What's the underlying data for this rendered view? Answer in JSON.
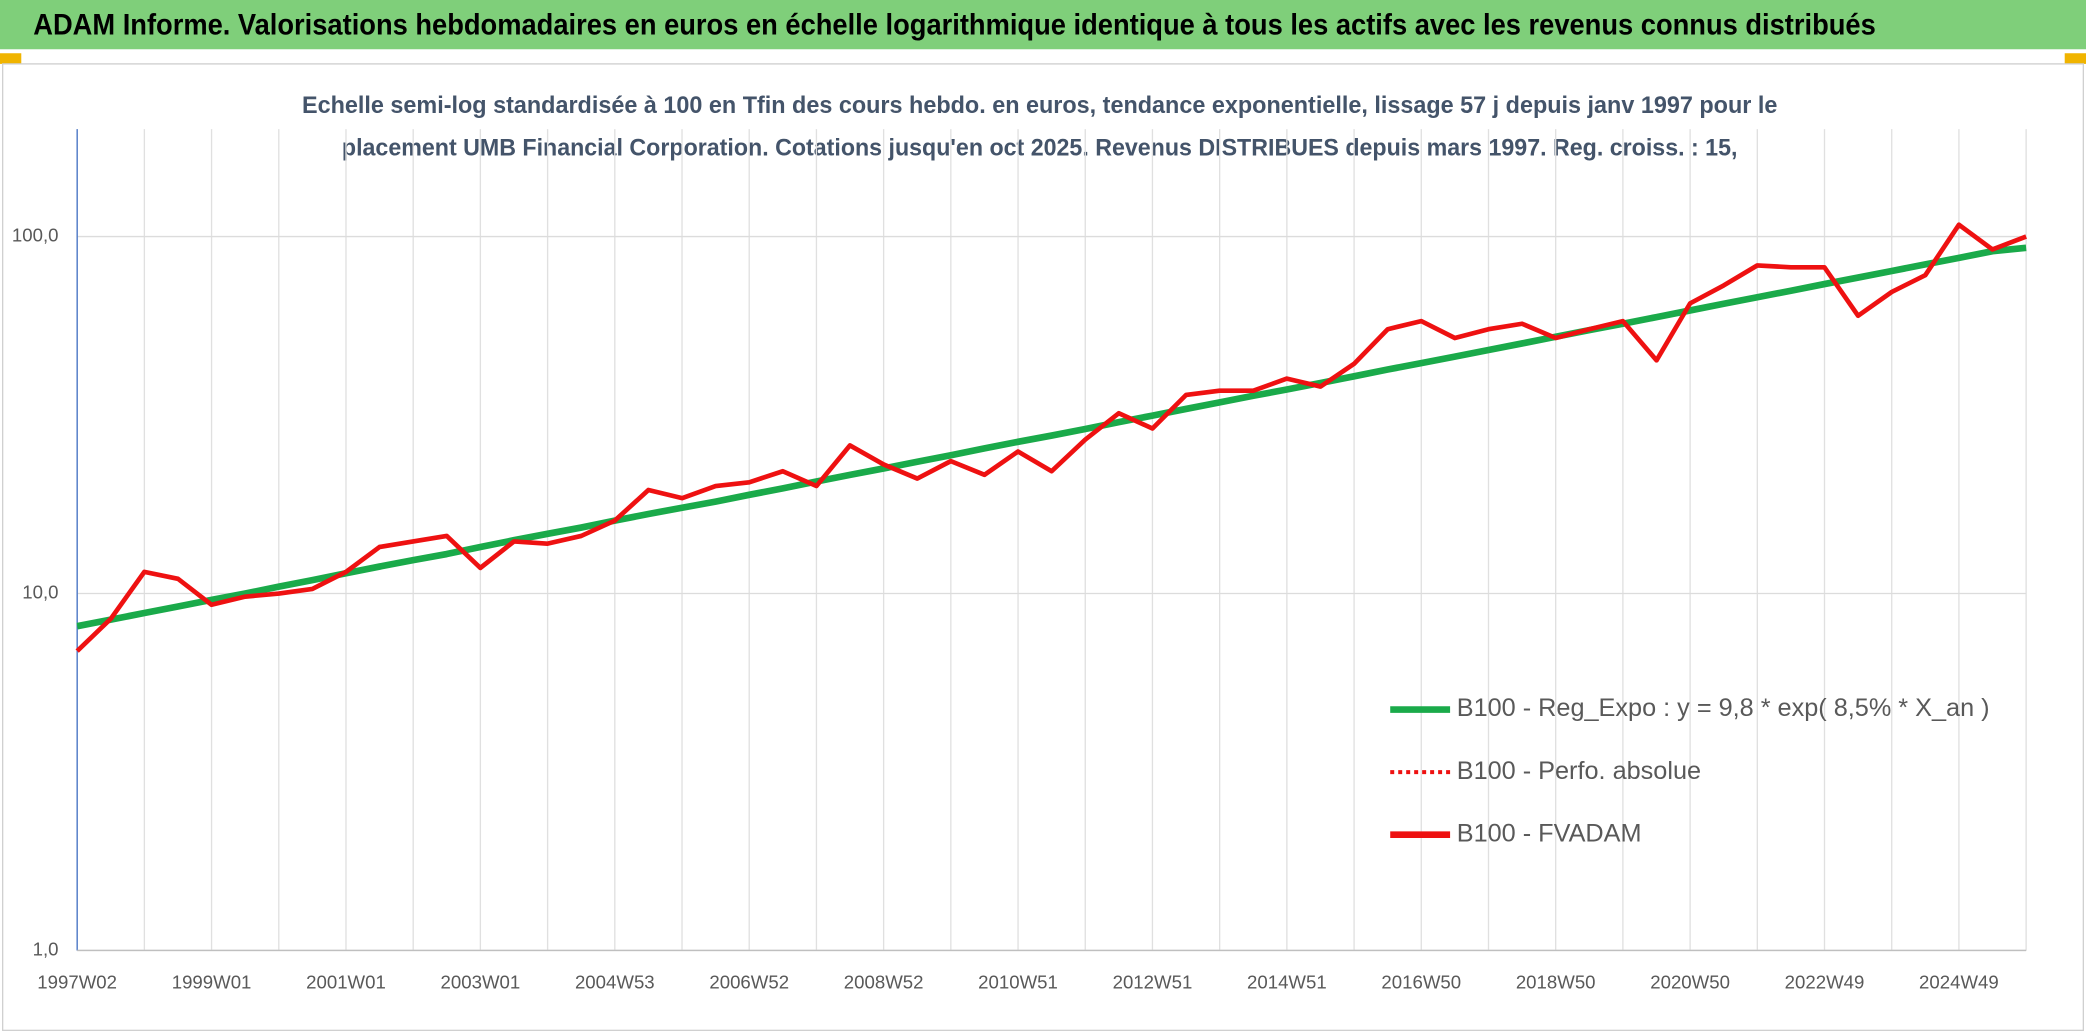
{
  "chart_data": {
    "type": "line",
    "title": "ADAM Informe. Valorisations hebdomadaires en euros en échelle logarithmique identique à tous les actifs avec les revenus connus distribués",
    "subtitle": [
      "Echelle semi-log standardisée à 100 en Tfin des cours hebdo. en euros, tendance exponentielle, lissage 57 j depuis janv 1997 pour le",
      "placement UMB Financial Corporation. Cotations jusqu'en oct 2025. Revenus DISTRIBUES depuis mars 1997. Reg. croiss. : 15,"
    ],
    "categories": [
      "1997W02",
      null,
      null,
      null,
      "1999W01",
      null,
      null,
      null,
      "2001W01",
      null,
      null,
      null,
      "2003W01",
      null,
      null,
      null,
      "2004W53",
      null,
      null,
      null,
      "2006W52",
      null,
      null,
      null,
      "2008W52",
      null,
      null,
      null,
      "2010W51",
      null,
      null,
      null,
      "2012W51",
      null,
      null,
      null,
      "2014W51",
      null,
      null,
      null,
      "2016W50",
      null,
      null,
      null,
      "2018W50",
      null,
      null,
      null,
      "2020W50",
      null,
      null,
      null,
      "2022W49",
      null,
      null,
      null,
      "2024W49",
      null,
      null
    ],
    "log_scale": true,
    "ylim": [
      1,
      200
    ],
    "yticks": [
      {
        "value": 1,
        "label": "1,0"
      },
      {
        "value": 10,
        "label": "10,0"
      },
      {
        "value": 100,
        "label": "100,0"
      }
    ],
    "grid": true,
    "legend_position": "right",
    "series": [
      {
        "name": "B100 - Reg_Expo : y = 9,8 * exp( 8,5% *  X_an )",
        "color": "#1aaa4a",
        "style": "solid",
        "values": [
          8.1,
          8.45,
          8.82,
          9.2,
          9.6,
          10.0,
          10.45,
          10.9,
          11.4,
          11.9,
          12.4,
          12.9,
          13.5,
          14.1,
          14.7,
          15.3,
          16.0,
          16.7,
          17.4,
          18.1,
          18.9,
          19.7,
          20.6,
          21.5,
          22.4,
          23.4,
          24.4,
          25.5,
          26.6,
          27.7,
          28.9,
          30.2,
          31.5,
          32.9,
          34.3,
          35.8,
          37.3,
          38.9,
          40.6,
          42.4,
          44.2,
          46.1,
          48.1,
          50.2,
          52.4,
          54.7,
          57.0,
          59.5,
          62.1,
          64.8,
          67.6,
          70.5,
          73.6,
          76.8,
          80.1,
          83.6,
          87.2,
          91.0,
          93.0
        ]
      },
      {
        "name": "B100 - Perfo. absolue",
        "color": "#ee1111",
        "style": "dotted"
      },
      {
        "name": "B100 - FVADAM",
        "color": "#ee1111",
        "style": "solid",
        "values": [
          6.9,
          8.5,
          11.5,
          11.0,
          9.3,
          9.8,
          10.0,
          10.3,
          11.5,
          13.5,
          14.0,
          14.5,
          11.8,
          14.0,
          13.8,
          14.5,
          16.0,
          19.5,
          18.5,
          20.0,
          20.5,
          22.0,
          20.0,
          26.0,
          23.0,
          21.0,
          23.5,
          21.5,
          25.0,
          22.0,
          27.0,
          32.0,
          29.0,
          36.0,
          37.0,
          37.0,
          40.0,
          38.0,
          44.0,
          55.0,
          58.0,
          52.0,
          55.0,
          57.0,
          52.0,
          55.0,
          58.0,
          45.0,
          65.0,
          73.0,
          83.0,
          82.0,
          82.0,
          60.0,
          70.0,
          78.0,
          108.0,
          92.0,
          100.0
        ]
      }
    ]
  }
}
